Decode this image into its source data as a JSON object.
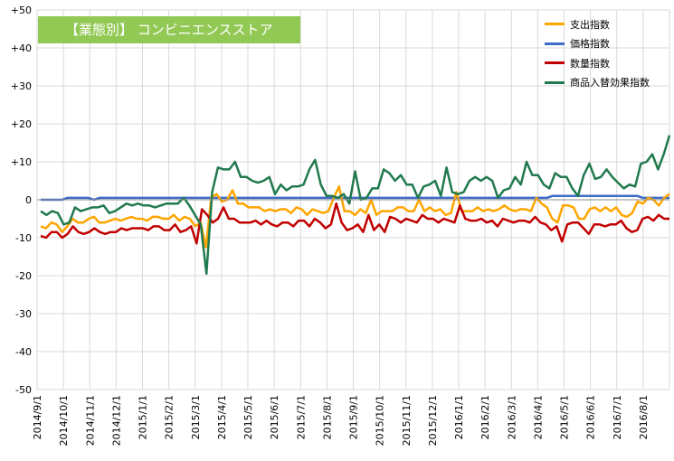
{
  "chart_data": {
    "type": "line",
    "title": "【業態別】 コンビニエンスストア",
    "xlabel": "",
    "ylabel": "",
    "ylim": [
      -50,
      50
    ],
    "yticks": [
      "+50",
      "+40",
      "+30",
      "+20",
      "+10",
      "0",
      "-10",
      "-20",
      "-30",
      "-40",
      "-50"
    ],
    "ytick_values": [
      50,
      40,
      30,
      20,
      10,
      0,
      -10,
      -20,
      -30,
      -40,
      -50
    ],
    "x_tick_labels": [
      "2014/9/1",
      "2014/10/1",
      "2014/11/1",
      "2014/12/1",
      "2015/1/1",
      "2015/2/1",
      "2015/3/1",
      "2015/4/1",
      "2015/5/1",
      "2015/6/1",
      "2015/7/1",
      "2015/8/1",
      "2015/9/1",
      "2015/10/1",
      "2015/11/1",
      "2015/12/1",
      "2016/1/1",
      "2016/2/1",
      "2016/3/1",
      "2016/4/1",
      "2016/5/1",
      "2016/6/1",
      "2016/7/1",
      "2016/8/1"
    ],
    "grid": true,
    "legend_position": "top-right",
    "series": [
      {
        "name": "支出指数",
        "color": "#ffa500",
        "values": [
          -7,
          -7.5,
          -6,
          -6.5,
          -8.5,
          -7,
          -5,
          -6,
          -6,
          -5,
          -4.5,
          -6,
          -6,
          -5.5,
          -5,
          -5.5,
          -5,
          -4.5,
          -5,
          -5,
          -5.5,
          -4.5,
          -4.5,
          -5,
          -5,
          -4,
          -5.5,
          -4.5,
          -5,
          -7,
          -6,
          -12.5,
          0.5,
          1.5,
          -0.5,
          0,
          2.5,
          -1,
          -1,
          -2,
          -2,
          -2,
          -3,
          -2.5,
          -3,
          -2.5,
          -2.5,
          -3.5,
          -2,
          -2.5,
          -4,
          -2.5,
          -3,
          -3.5,
          -3,
          0.5,
          3.5,
          -3,
          -3,
          -4,
          -2.5,
          -3.5,
          0,
          -4,
          -3,
          -3,
          -3,
          -2,
          -2,
          -3,
          -3,
          0,
          -3,
          -2,
          -3,
          -2.5,
          -4,
          -3.5,
          2,
          -3,
          -3,
          -3,
          -2,
          -3,
          -2.5,
          -3,
          -2.5,
          -1.5,
          -2.5,
          -3,
          -2.5,
          -2.5,
          -3,
          0.5,
          -1,
          -2,
          -5,
          -6,
          -1.5,
          -1.5,
          -2,
          -5,
          -5,
          -2.5,
          -2,
          -3,
          -2,
          -3,
          -2,
          -4,
          -4.5,
          -3.5,
          -0.5,
          -1,
          0.5,
          0,
          -1.5,
          0.5,
          1.5
        ]
      },
      {
        "name": "価格指数",
        "color": "#3e6cc8",
        "values": [
          0,
          0,
          0,
          0,
          0,
          0.5,
          0.5,
          0.5,
          0.5,
          0.5,
          0,
          0.5,
          0.5,
          0.5,
          0.5,
          0.5,
          0.5,
          0.5,
          0.5,
          0.5,
          0.5,
          0.5,
          0.5,
          0.5,
          0.5,
          0.5,
          0.5,
          0.5,
          0.5,
          0.5,
          0.5,
          0.5,
          0.5,
          0.5,
          0.5,
          0.5,
          0.5,
          0.5,
          0.5,
          0.5,
          0.5,
          0.5,
          0.5,
          0.5,
          0.5,
          0.5,
          0.5,
          0.5,
          0.5,
          0.5,
          0.5,
          0.5,
          0.5,
          0.5,
          0.5,
          0.5,
          0.5,
          0.5,
          0.5,
          0.5,
          0.5,
          0.5,
          0.5,
          0.5,
          0.5,
          0.5,
          0.5,
          0.5,
          0.5,
          0.5,
          0.5,
          0.5,
          0.5,
          0.5,
          0.5,
          0.5,
          0.5,
          0.5,
          0.5,
          0.5,
          0.5,
          0.5,
          0.5,
          0.5,
          0.5,
          0.5,
          0.5,
          0.5,
          0.5,
          0.5,
          0.5,
          0.5,
          0.5,
          0.5,
          0.5,
          0.5,
          1,
          1,
          1,
          1,
          1,
          1,
          1,
          1,
          1,
          1,
          1,
          1,
          1,
          1,
          1,
          1,
          1,
          0.5,
          0.5,
          0.5,
          0.5,
          0.5,
          0.5
        ]
      },
      {
        "name": "数量指数",
        "color": "#c00000",
        "values": [
          -9.5,
          -10,
          -8.5,
          -8.5,
          -10,
          -9,
          -7,
          -8.5,
          -9,
          -8.5,
          -7.5,
          -8.5,
          -9,
          -8.5,
          -8.5,
          -7.5,
          -8,
          -7.5,
          -7.5,
          -7.5,
          -8,
          -7,
          -7,
          -8,
          -8,
          -6.5,
          -8.5,
          -8,
          -7,
          -11.5,
          -2.5,
          -4,
          -6,
          -5,
          -2,
          -5,
          -5,
          -6,
          -6,
          -6,
          -5.5,
          -6.5,
          -5.5,
          -6.5,
          -7,
          -6,
          -6,
          -7,
          -5.5,
          -5.5,
          -7,
          -5,
          -6,
          -7.5,
          -6.5,
          -1,
          -6,
          -8,
          -7.5,
          -6.5,
          -8.5,
          -4,
          -8,
          -6.5,
          -8.5,
          -4.5,
          -5,
          -6,
          -5,
          -5.5,
          -6,
          -4,
          -5,
          -5,
          -6,
          -5,
          -5.5,
          -6,
          -1.5,
          -5,
          -5.5,
          -5.5,
          -5,
          -6,
          -5.5,
          -7,
          -5,
          -5.5,
          -6,
          -5.5,
          -5.5,
          -6,
          -4.5,
          -6,
          -6.5,
          -8,
          -7,
          -11,
          -6.5,
          -6,
          -6,
          -7.5,
          -9,
          -6.5,
          -6.5,
          -7,
          -6.5,
          -6.5,
          -5.5,
          -7.5,
          -8.5,
          -8,
          -5,
          -4.5,
          -5.5,
          -4,
          -5,
          -5
        ]
      },
      {
        "name": "商品入替効果指数",
        "color": "#217a4d",
        "values": [
          -3,
          -4,
          -3,
          -3.5,
          -6.5,
          -6,
          -2,
          -3,
          -2.5,
          -2,
          -2,
          -1.5,
          -3.5,
          -3,
          -2,
          -1,
          -1.5,
          -1,
          -1.5,
          -1.5,
          -2,
          -1.5,
          -1,
          -1,
          -1,
          0.5,
          -1.5,
          -4,
          -6.5,
          -19.5,
          2,
          8.5,
          8,
          8,
          10,
          6,
          6,
          5,
          4.5,
          5,
          6,
          1.5,
          4,
          2.5,
          3.5,
          3.5,
          4,
          8,
          10.5,
          4,
          1,
          1,
          0.5,
          1.5,
          -1,
          7.5,
          0,
          0.5,
          3,
          3,
          8,
          7,
          5,
          6.5,
          4,
          4,
          0.5,
          3.5,
          4,
          5,
          1,
          8.5,
          2,
          1.5,
          2,
          5,
          6,
          5,
          6,
          5,
          0.5,
          2.5,
          3,
          6,
          4,
          10,
          6.5,
          6.5,
          4,
          3,
          7,
          6,
          6,
          3,
          1,
          6.5,
          9.5,
          5.5,
          6,
          8,
          6,
          4.5,
          3,
          4,
          3.5,
          9.5,
          10,
          12,
          8,
          12,
          17
        ]
      }
    ]
  }
}
